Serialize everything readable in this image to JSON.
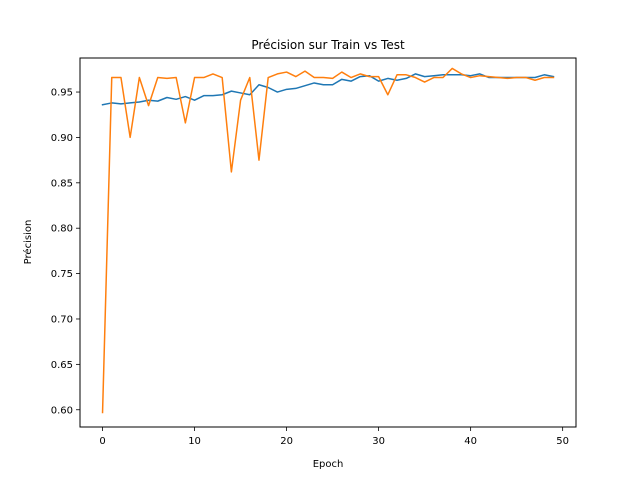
{
  "chart_data": {
    "type": "line",
    "title": "Précision sur Train vs Test",
    "xlabel": "Epoch",
    "ylabel": "Précision",
    "xlim": [
      -2.45,
      51.45
    ],
    "ylim": [
      0.581,
      0.9875
    ],
    "xticks": [
      0,
      10,
      20,
      30,
      40,
      50
    ],
    "yticks": [
      0.6,
      0.65,
      0.7,
      0.75,
      0.8,
      0.85,
      0.9,
      0.95
    ],
    "ytick_labels": [
      "0.60",
      "0.65",
      "0.70",
      "0.75",
      "0.80",
      "0.85",
      "0.90",
      "0.95"
    ],
    "grid": false,
    "legend": false,
    "x": [
      0,
      1,
      2,
      3,
      4,
      5,
      6,
      7,
      8,
      9,
      10,
      11,
      12,
      13,
      14,
      15,
      16,
      17,
      18,
      19,
      20,
      21,
      22,
      23,
      24,
      25,
      26,
      27,
      28,
      29,
      30,
      31,
      32,
      33,
      34,
      35,
      36,
      37,
      38,
      39,
      40,
      41,
      42,
      43,
      44,
      45,
      46,
      47,
      48,
      49
    ],
    "series": [
      {
        "color": "#1f77b4",
        "values": [
          0.936,
          0.938,
          0.937,
          0.938,
          0.939,
          0.941,
          0.94,
          0.944,
          0.942,
          0.945,
          0.941,
          0.946,
          0.946,
          0.947,
          0.951,
          0.949,
          0.947,
          0.958,
          0.955,
          0.95,
          0.953,
          0.954,
          0.957,
          0.96,
          0.958,
          0.958,
          0.964,
          0.962,
          0.967,
          0.968,
          0.962,
          0.965,
          0.963,
          0.965,
          0.97,
          0.967,
          0.968,
          0.969,
          0.969,
          0.969,
          0.968,
          0.97,
          0.966,
          0.966,
          0.966,
          0.966,
          0.966,
          0.966,
          0.969,
          0.967
        ]
      },
      {
        "color": "#ff7f0e",
        "values": [
          0.597,
          0.966,
          0.966,
          0.9,
          0.966,
          0.935,
          0.966,
          0.965,
          0.966,
          0.916,
          0.966,
          0.966,
          0.97,
          0.966,
          0.862,
          0.941,
          0.966,
          0.875,
          0.966,
          0.97,
          0.972,
          0.967,
          0.973,
          0.966,
          0.966,
          0.965,
          0.972,
          0.966,
          0.97,
          0.967,
          0.967,
          0.947,
          0.969,
          0.969,
          0.966,
          0.961,
          0.966,
          0.966,
          0.976,
          0.97,
          0.966,
          0.968,
          0.967,
          0.966,
          0.965,
          0.966,
          0.966,
          0.963,
          0.966,
          0.966
        ]
      }
    ]
  }
}
